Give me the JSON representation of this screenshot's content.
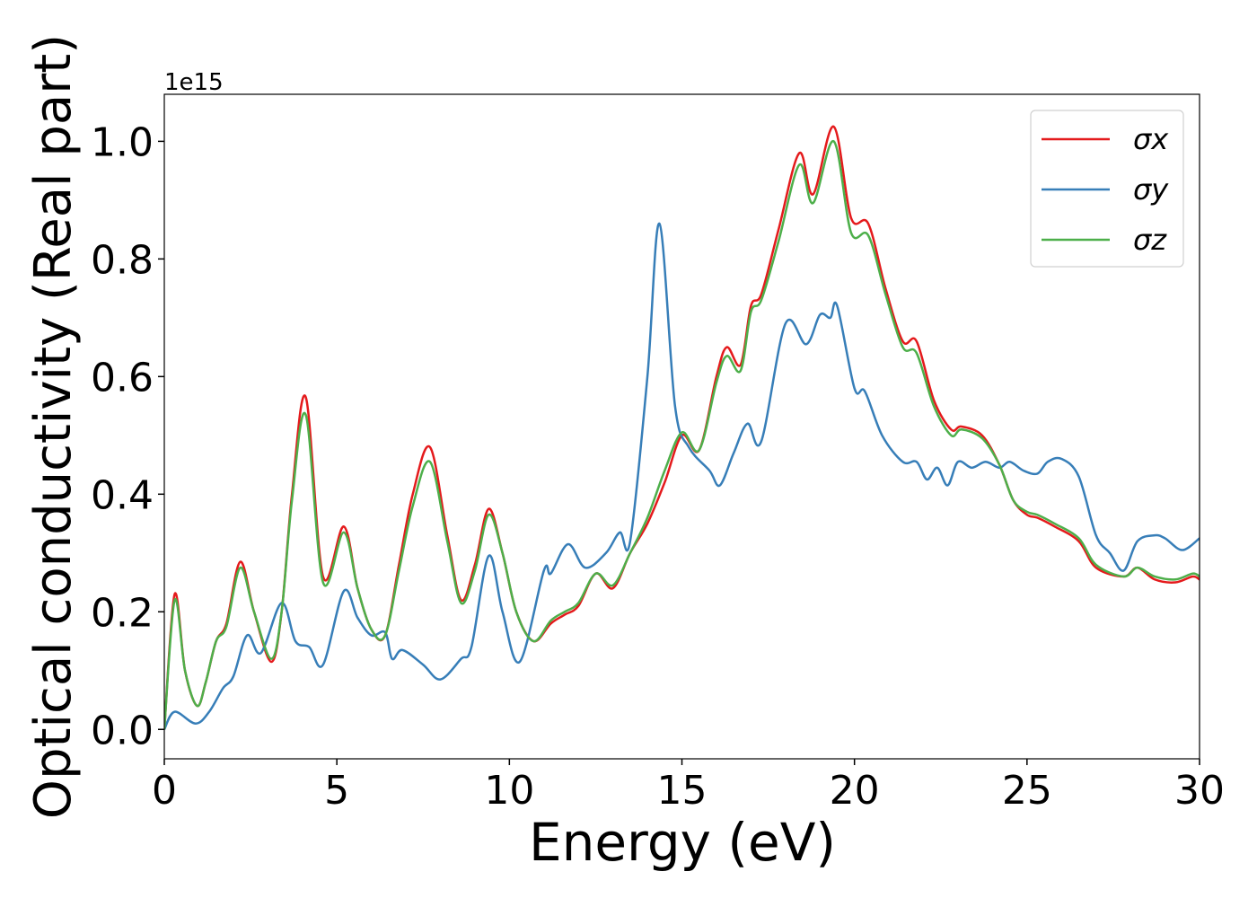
{
  "chart_data": {
    "type": "line",
    "x_label": "Energy (eV)",
    "y_label": "Optical conductivity (Real part)",
    "y_offset_label": "1e15",
    "xlim": [
      0,
      30
    ],
    "xticks": [
      0,
      5,
      10,
      15,
      20,
      25,
      30
    ],
    "ylim": [
      -0.05,
      1.08
    ],
    "yticks": [
      {
        "value": 0,
        "label": "0.0"
      },
      0.2,
      0.4,
      0.6,
      0.8,
      {
        "value": 1,
        "label": "1.0"
      }
    ],
    "legend": "upper right",
    "series": [
      {
        "name": "σx",
        "color": "#e41a1c",
        "x": [
          0,
          0.3,
          0.6,
          0.95,
          1.2,
          1.5,
          1.8,
          2.2,
          2.6,
          3.1,
          3.4,
          3.7,
          4.1,
          4.6,
          5.2,
          5.6,
          6.0,
          6.4,
          6.8,
          7.2,
          7.7,
          8.2,
          8.6,
          9.0,
          9.4,
          9.8,
          10.2,
          10.7,
          11.2,
          11.6,
          12.0,
          12.5,
          13.0,
          13.5,
          14.0,
          14.5,
          15.0,
          15.5,
          16.0,
          16.3,
          16.7,
          17.0,
          17.3,
          17.8,
          18.4,
          18.8,
          19.4,
          19.9,
          20.4,
          20.9,
          21.4,
          21.8,
          22.3,
          22.8,
          23.1,
          23.7,
          24.2,
          24.6,
          25.0,
          25.3,
          25.8,
          26.5,
          27.0,
          27.8,
          28.2,
          28.7,
          29.3,
          29.8,
          30
        ],
        "values": [
          0,
          0.23,
          0.1,
          0.04,
          0.08,
          0.15,
          0.18,
          0.285,
          0.2,
          0.115,
          0.2,
          0.4,
          0.565,
          0.26,
          0.345,
          0.24,
          0.17,
          0.16,
          0.28,
          0.4,
          0.48,
          0.33,
          0.22,
          0.28,
          0.375,
          0.3,
          0.2,
          0.15,
          0.18,
          0.195,
          0.21,
          0.265,
          0.24,
          0.3,
          0.35,
          0.42,
          0.5,
          0.475,
          0.6,
          0.65,
          0.62,
          0.72,
          0.74,
          0.85,
          0.98,
          0.91,
          1.025,
          0.87,
          0.86,
          0.75,
          0.66,
          0.66,
          0.56,
          0.51,
          0.515,
          0.5,
          0.45,
          0.39,
          0.365,
          0.36,
          0.345,
          0.32,
          0.275,
          0.26,
          0.275,
          0.255,
          0.25,
          0.26,
          0.255
        ]
      },
      {
        "name": "σy",
        "color": "#377eb8",
        "x": [
          0,
          0.3,
          0.9,
          1.3,
          1.7,
          2.0,
          2.4,
          2.8,
          3.4,
          3.8,
          4.2,
          4.6,
          5.2,
          5.6,
          6.0,
          6.4,
          6.6,
          6.9,
          7.5,
          8.0,
          8.6,
          8.9,
          9.4,
          9.8,
          10.3,
          11.0,
          11.2,
          11.7,
          12.2,
          12.8,
          13.2,
          13.5,
          14.0,
          14.35,
          14.8,
          15.2,
          15.8,
          16.1,
          16.5,
          16.9,
          17.3,
          18.0,
          18.6,
          19.0,
          19.3,
          19.5,
          20.0,
          20.3,
          20.8,
          21.4,
          21.8,
          22.1,
          22.4,
          22.7,
          23.0,
          23.4,
          23.8,
          24.2,
          24.5,
          24.9,
          25.3,
          25.6,
          26.0,
          26.5,
          27.0,
          27.4,
          27.8,
          28.2,
          28.7,
          29.0,
          29.5,
          30
        ],
        "values": [
          0,
          0.03,
          0.01,
          0.03,
          0.07,
          0.09,
          0.16,
          0.13,
          0.215,
          0.15,
          0.14,
          0.11,
          0.235,
          0.19,
          0.16,
          0.165,
          0.12,
          0.135,
          0.11,
          0.085,
          0.12,
          0.14,
          0.295,
          0.2,
          0.115,
          0.27,
          0.265,
          0.315,
          0.275,
          0.3,
          0.335,
          0.32,
          0.6,
          0.86,
          0.55,
          0.48,
          0.44,
          0.415,
          0.47,
          0.52,
          0.49,
          0.69,
          0.655,
          0.705,
          0.7,
          0.72,
          0.58,
          0.575,
          0.5,
          0.455,
          0.455,
          0.425,
          0.445,
          0.415,
          0.455,
          0.445,
          0.455,
          0.445,
          0.455,
          0.44,
          0.435,
          0.455,
          0.46,
          0.43,
          0.33,
          0.3,
          0.27,
          0.32,
          0.33,
          0.325,
          0.305,
          0.325
        ]
      },
      {
        "name": "σz",
        "color": "#4daf4a",
        "x": [
          0,
          0.3,
          0.6,
          0.95,
          1.2,
          1.5,
          1.8,
          2.2,
          2.6,
          3.1,
          3.4,
          3.7,
          4.1,
          4.6,
          5.2,
          5.6,
          6.0,
          6.4,
          6.8,
          7.2,
          7.7,
          8.2,
          8.6,
          9.0,
          9.4,
          9.8,
          10.2,
          10.7,
          11.2,
          11.6,
          12.0,
          12.5,
          13.0,
          13.5,
          14.0,
          14.5,
          15.0,
          15.5,
          16.0,
          16.3,
          16.7,
          17.0,
          17.3,
          17.8,
          18.4,
          18.8,
          19.4,
          19.9,
          20.4,
          20.9,
          21.4,
          21.8,
          22.3,
          22.8,
          23.1,
          23.7,
          24.2,
          24.6,
          25.0,
          25.3,
          25.8,
          26.5,
          27.0,
          27.8,
          28.2,
          28.7,
          29.3,
          29.8,
          30
        ],
        "values": [
          0,
          0.22,
          0.1,
          0.04,
          0.08,
          0.15,
          0.175,
          0.275,
          0.2,
          0.12,
          0.2,
          0.39,
          0.535,
          0.25,
          0.335,
          0.24,
          0.17,
          0.16,
          0.27,
          0.38,
          0.455,
          0.32,
          0.215,
          0.27,
          0.365,
          0.3,
          0.2,
          0.15,
          0.185,
          0.2,
          0.215,
          0.265,
          0.245,
          0.3,
          0.36,
          0.44,
          0.505,
          0.475,
          0.59,
          0.635,
          0.61,
          0.71,
          0.73,
          0.83,
          0.96,
          0.895,
          1.0,
          0.845,
          0.84,
          0.74,
          0.65,
          0.64,
          0.55,
          0.5,
          0.51,
          0.495,
          0.45,
          0.39,
          0.37,
          0.365,
          0.35,
          0.325,
          0.28,
          0.26,
          0.275,
          0.26,
          0.255,
          0.265,
          0.26
        ]
      }
    ]
  }
}
